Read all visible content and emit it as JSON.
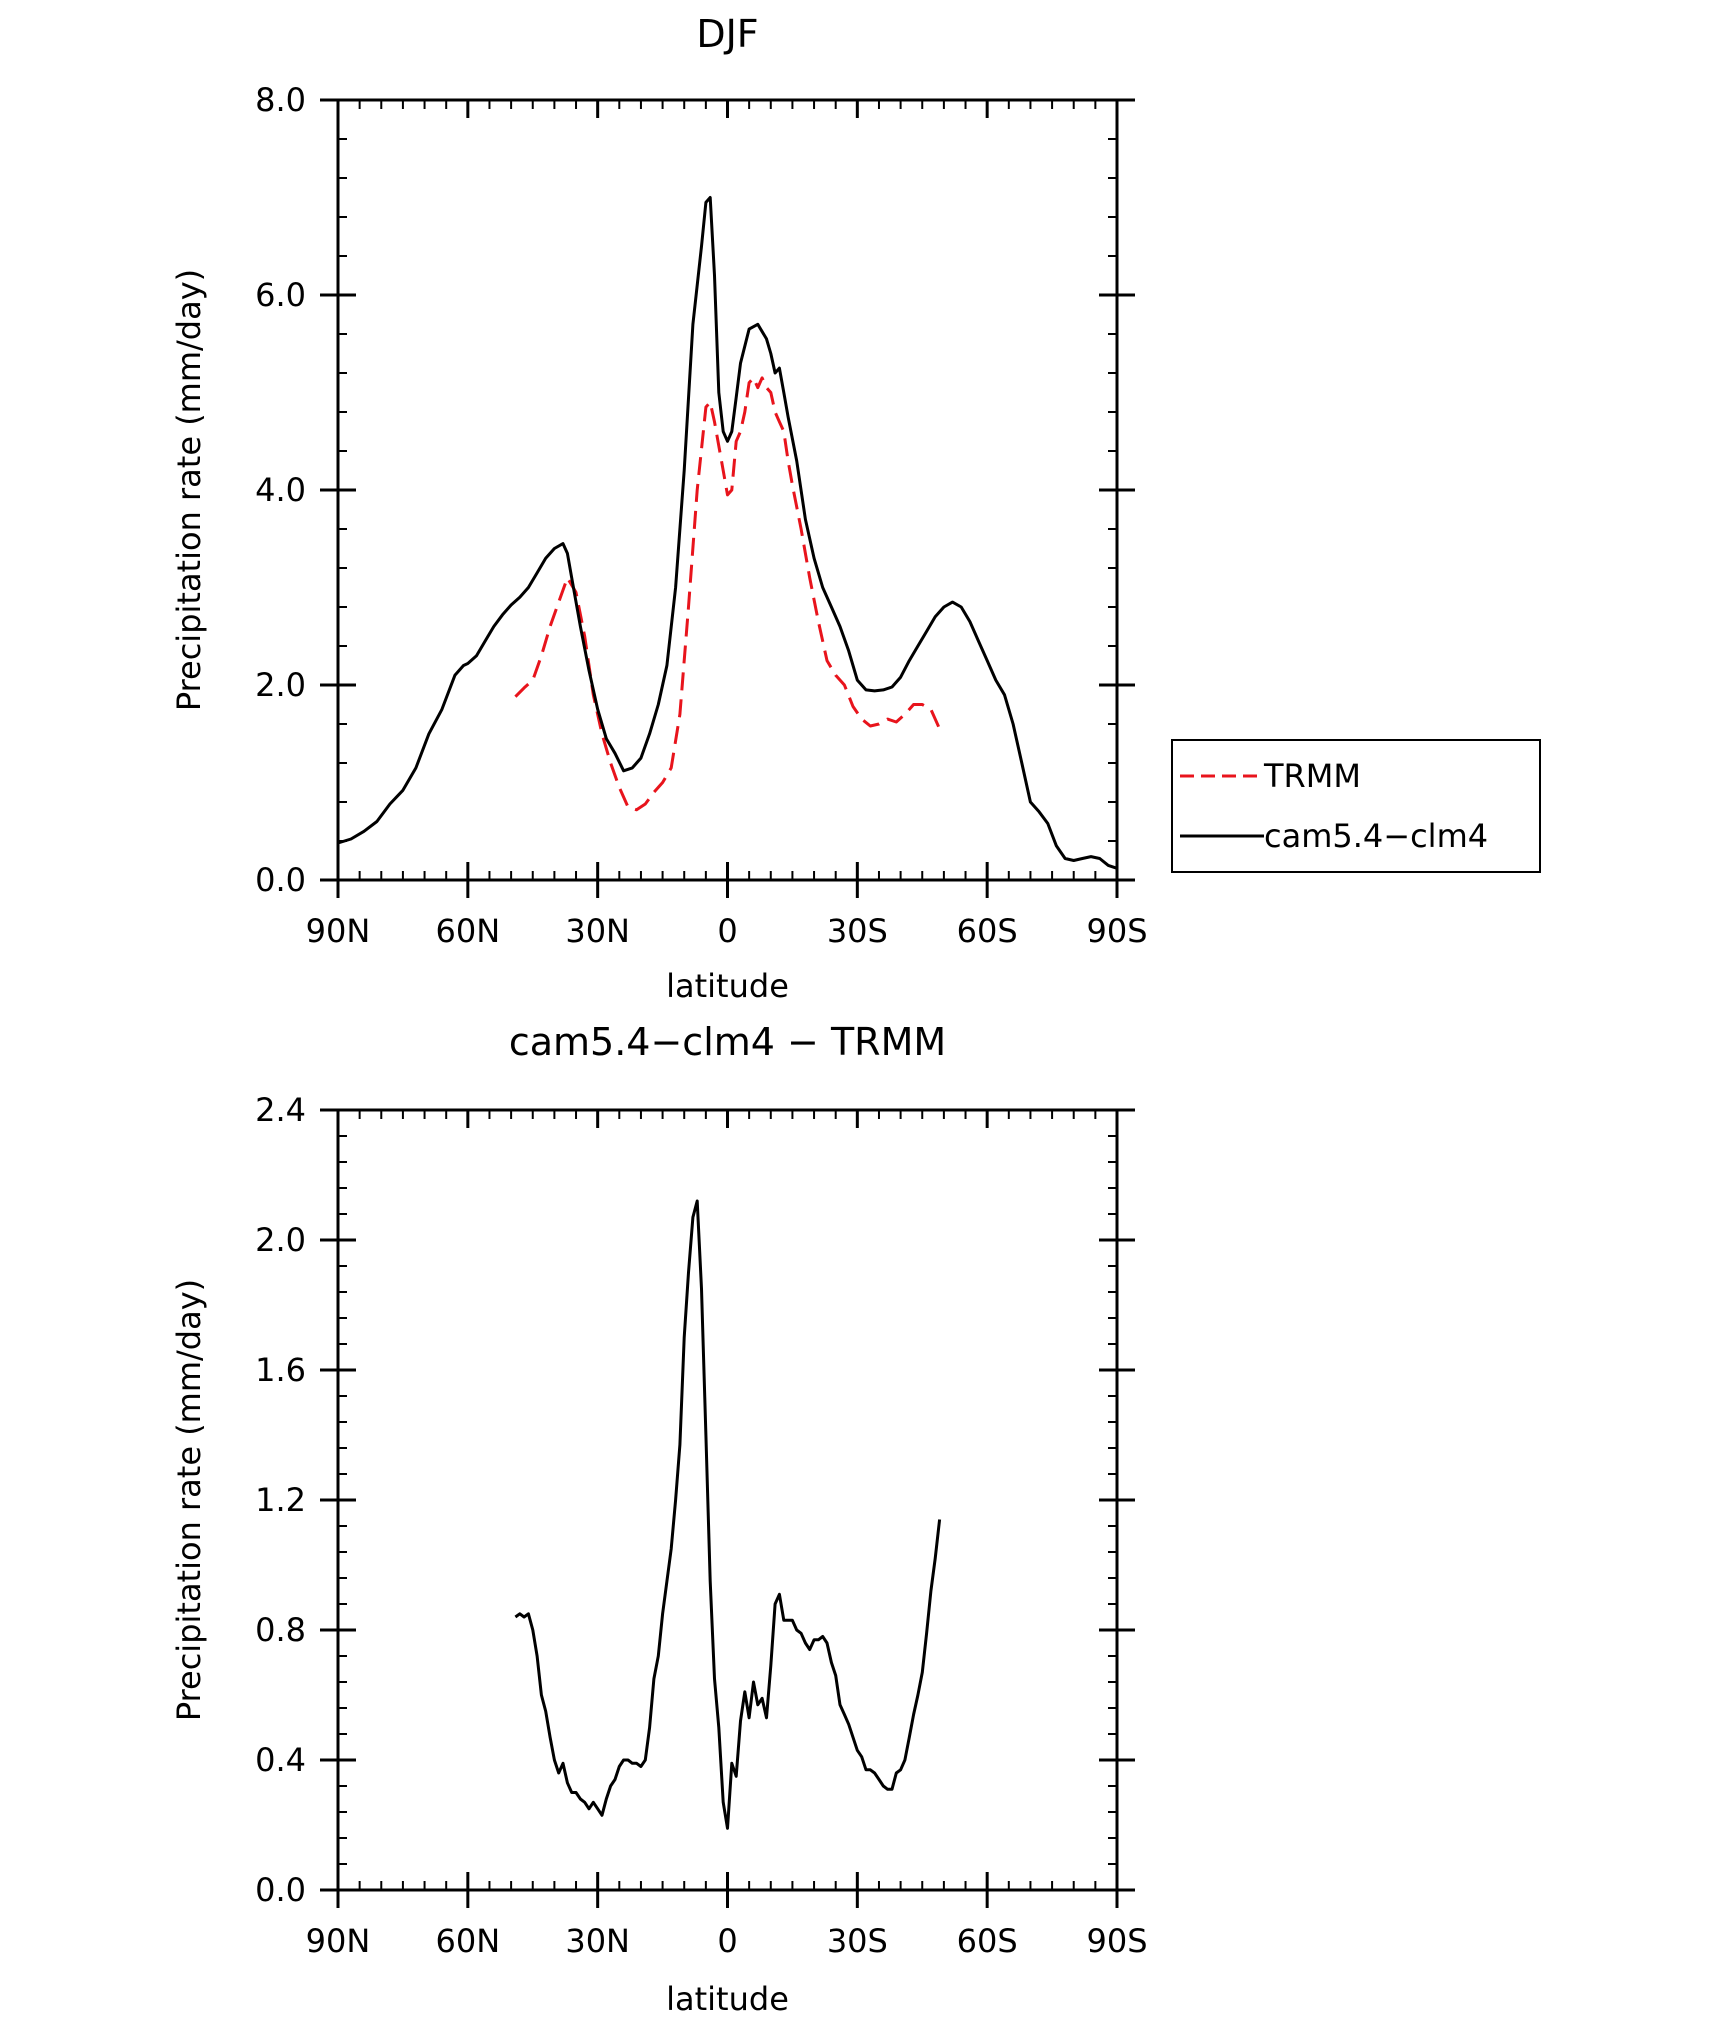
{
  "chart_data": [
    {
      "type": "line",
      "title": "DJF",
      "xlabel": "latitude",
      "ylabel": "Precipitation rate (mm/day)",
      "xlim": [
        90,
        -90
      ],
      "ylim": [
        0.0,
        8.0
      ],
      "x_ticks": [
        {
          "value": 90,
          "label": "90N"
        },
        {
          "value": 60,
          "label": "60N"
        },
        {
          "value": 30,
          "label": "30N"
        },
        {
          "value": 0,
          "label": "0"
        },
        {
          "value": -30,
          "label": "30S"
        },
        {
          "value": -60,
          "label": "60S"
        },
        {
          "value": -90,
          "label": "90S"
        }
      ],
      "y_ticks": [
        {
          "value": 0,
          "label": "0.0"
        },
        {
          "value": 2,
          "label": "2.0"
        },
        {
          "value": 4,
          "label": "4.0"
        },
        {
          "value": 6,
          "label": "6.0"
        },
        {
          "value": 8,
          "label": "8.0"
        }
      ],
      "legend": {
        "position": "right",
        "entries": [
          "TRMM",
          "cam5.4−clm4"
        ]
      },
      "series": [
        {
          "name": "TRMM",
          "color": "#e8141c",
          "dash": "dashed",
          "x": [
            49,
            47,
            45,
            43,
            41,
            39,
            37,
            35,
            33,
            31,
            29,
            27,
            25,
            23,
            21,
            19,
            17,
            15,
            13,
            11,
            9,
            7,
            5,
            4,
            3,
            1,
            0,
            -1,
            -2,
            -3,
            -4,
            -5,
            -6,
            -7,
            -8,
            -9,
            -10,
            -11,
            -12,
            -13,
            -14,
            -15,
            -17,
            -19,
            -21,
            -23,
            -25,
            -27,
            -29,
            -31,
            -33,
            -35,
            -37,
            -39,
            -41,
            -43,
            -45,
            -47,
            -49
          ],
          "y": [
            1.88,
            1.97,
            2.05,
            2.3,
            2.6,
            2.85,
            3.1,
            2.95,
            2.5,
            1.9,
            1.5,
            1.2,
            0.95,
            0.75,
            0.72,
            0.78,
            0.9,
            1.0,
            1.15,
            1.7,
            2.8,
            4.0,
            4.85,
            4.9,
            4.7,
            4.2,
            3.95,
            4.0,
            4.5,
            4.6,
            4.8,
            5.1,
            5.15,
            5.05,
            5.15,
            5.05,
            5.0,
            4.8,
            4.7,
            4.6,
            4.3,
            4.05,
            3.6,
            3.1,
            2.65,
            2.25,
            2.1,
            2.0,
            1.78,
            1.65,
            1.58,
            1.6,
            1.65,
            1.62,
            1.7,
            1.8,
            1.8,
            1.75,
            1.55
          ]
        },
        {
          "name": "cam5.4−clm4",
          "color": "#000000",
          "dash": "solid",
          "x": [
            90,
            87,
            84,
            81,
            78,
            75,
            72,
            69,
            66,
            63,
            61,
            60,
            58,
            56,
            54,
            52,
            50,
            48,
            46,
            44,
            42,
            40,
            38,
            37,
            36,
            34,
            32,
            30,
            28,
            26,
            24,
            22,
            20,
            18,
            16,
            14,
            12,
            10,
            8,
            6,
            5,
            4,
            3,
            2,
            1,
            0,
            -1,
            -2,
            -3,
            -5,
            -7,
            -9,
            -10,
            -11,
            -12,
            -13,
            -14,
            -16,
            -18,
            -20,
            -22,
            -24,
            -26,
            -28,
            -30,
            -32,
            -34,
            -36,
            -38,
            -40,
            -42,
            -44,
            -46,
            -48,
            -50,
            -52,
            -54,
            -56,
            -58,
            -60,
            -62,
            -64,
            -66,
            -68,
            -70,
            -72,
            -74,
            -76,
            -78,
            -80,
            -82,
            -84,
            -86,
            -88,
            -90
          ],
          "y": [
            0.38,
            0.42,
            0.5,
            0.6,
            0.78,
            0.92,
            1.15,
            1.5,
            1.75,
            2.1,
            2.2,
            2.22,
            2.3,
            2.45,
            2.6,
            2.72,
            2.82,
            2.9,
            3.0,
            3.15,
            3.3,
            3.4,
            3.45,
            3.35,
            3.1,
            2.6,
            2.15,
            1.75,
            1.45,
            1.3,
            1.12,
            1.15,
            1.25,
            1.5,
            1.8,
            2.2,
            3.0,
            4.2,
            5.7,
            6.5,
            6.95,
            7.0,
            6.2,
            5.0,
            4.6,
            4.5,
            4.6,
            4.95,
            5.3,
            5.65,
            5.7,
            5.55,
            5.4,
            5.2,
            5.25,
            5.0,
            4.75,
            4.3,
            3.7,
            3.3,
            3.0,
            2.8,
            2.6,
            2.35,
            2.05,
            1.95,
            1.94,
            1.95,
            1.98,
            2.08,
            2.25,
            2.4,
            2.55,
            2.7,
            2.8,
            2.85,
            2.8,
            2.65,
            2.45,
            2.25,
            2.05,
            1.9,
            1.6,
            1.2,
            0.8,
            0.7,
            0.58,
            0.35,
            0.22,
            0.2,
            0.22,
            0.24,
            0.22,
            0.15,
            0.12
          ]
        }
      ]
    },
    {
      "type": "line",
      "title": "cam5.4−clm4 − TRMM",
      "xlabel": "latitude",
      "ylabel": "Precipitation rate (mm/day)",
      "xlim": [
        90,
        -90
      ],
      "ylim": [
        0.0,
        2.4
      ],
      "x_ticks": [
        {
          "value": 90,
          "label": "90N"
        },
        {
          "value": 60,
          "label": "60N"
        },
        {
          "value": 30,
          "label": "30N"
        },
        {
          "value": 0,
          "label": "0"
        },
        {
          "value": -30,
          "label": "30S"
        },
        {
          "value": -60,
          "label": "60S"
        },
        {
          "value": -90,
          "label": "90S"
        }
      ],
      "y_ticks": [
        {
          "value": 0,
          "label": "0.0"
        },
        {
          "value": 0.4,
          "label": "0.4"
        },
        {
          "value": 0.8,
          "label": "0.8"
        },
        {
          "value": 1.2,
          "label": "1.2"
        },
        {
          "value": 1.6,
          "label": "1.6"
        },
        {
          "value": 2.0,
          "label": "2.0"
        },
        {
          "value": 2.4,
          "label": "2.4"
        }
      ],
      "series": [
        {
          "color": "#000000",
          "dash": "solid",
          "x": [
            49,
            48,
            47,
            46,
            45,
            44,
            43,
            42,
            41,
            40,
            39,
            38,
            37,
            36,
            35,
            34,
            33,
            32,
            31,
            30,
            29,
            28,
            27,
            26,
            25,
            24,
            23,
            22,
            21,
            20,
            19,
            18,
            17,
            16,
            15,
            14,
            13,
            12,
            11,
            10,
            9,
            8,
            7,
            6,
            5,
            4,
            3,
            2,
            1,
            0,
            -1,
            -2,
            -3,
            -4,
            -5,
            -6,
            -7,
            -8,
            -9,
            -10,
            -11,
            -12,
            -13,
            -14,
            -15,
            -16,
            -17,
            -18,
            -19,
            -20,
            -21,
            -22,
            -23,
            -24,
            -25,
            -26,
            -27,
            -28,
            -29,
            -30,
            -31,
            -32,
            -33,
            -34,
            -35,
            -36,
            -37,
            -38,
            -39,
            -40,
            -41,
            -42,
            -43,
            -44,
            -45,
            -46,
            -47,
            -48,
            -49
          ],
          "y": [
            0.84,
            0.85,
            0.84,
            0.85,
            0.8,
            0.72,
            0.6,
            0.55,
            0.47,
            0.4,
            0.36,
            0.39,
            0.33,
            0.3,
            0.3,
            0.28,
            0.27,
            0.25,
            0.27,
            0.25,
            0.23,
            0.28,
            0.32,
            0.34,
            0.38,
            0.4,
            0.4,
            0.39,
            0.39,
            0.38,
            0.4,
            0.5,
            0.65,
            0.72,
            0.85,
            0.95,
            1.05,
            1.2,
            1.37,
            1.7,
            1.9,
            2.07,
            2.12,
            1.85,
            1.4,
            0.95,
            0.65,
            0.5,
            0.27,
            0.19,
            0.39,
            0.35,
            0.52,
            0.61,
            0.53,
            0.64,
            0.57,
            0.59,
            0.53,
            0.69,
            0.88,
            0.91,
            0.83,
            0.83,
            0.83,
            0.8,
            0.79,
            0.76,
            0.74,
            0.77,
            0.77,
            0.78,
            0.76,
            0.7,
            0.66,
            0.57,
            0.54,
            0.51,
            0.47,
            0.43,
            0.41,
            0.37,
            0.37,
            0.36,
            0.34,
            0.32,
            0.31,
            0.31,
            0.36,
            0.37,
            0.4,
            0.47,
            0.54,
            0.6,
            0.67,
            0.79,
            0.92,
            1.02,
            1.14
          ]
        }
      ]
    }
  ]
}
